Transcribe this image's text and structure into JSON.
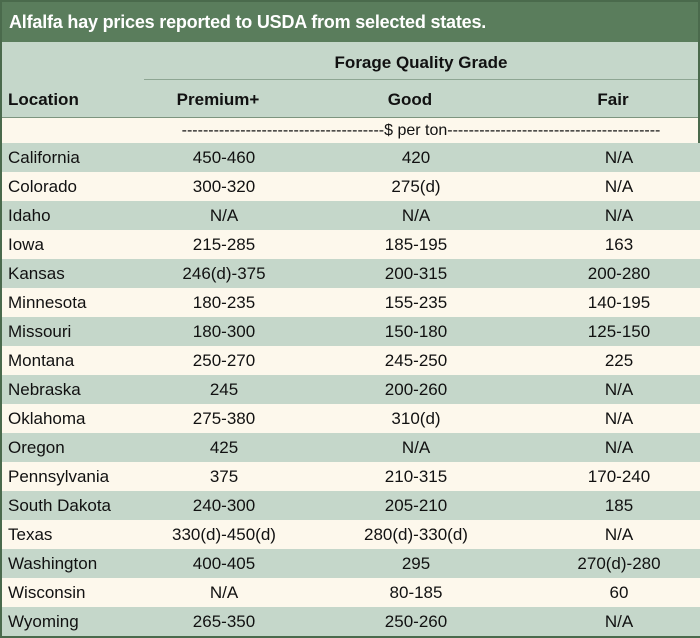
{
  "title": "Alfalfa hay prices reported to USDA from selected states.",
  "header": {
    "group_label": "Forage Quality Grade",
    "location_label": "Location",
    "columns": [
      "Premium+",
      "Good",
      "Fair"
    ],
    "unit_label": "--------------------------------------$ per ton----------------------------------------"
  },
  "rows": [
    {
      "location": "California",
      "premium": "450-460",
      "good": "420",
      "fair": "N/A"
    },
    {
      "location": "Colorado",
      "premium": "300-320",
      "good": "275(d)",
      "fair": "N/A"
    },
    {
      "location": "Idaho",
      "premium": "N/A",
      "good": "N/A",
      "fair": "N/A"
    },
    {
      "location": "Iowa",
      "premium": "215-285",
      "good": "185-195",
      "fair": "163"
    },
    {
      "location": "Kansas",
      "premium": "246(d)-375",
      "good": "200-315",
      "fair": "200-280"
    },
    {
      "location": "Minnesota",
      "premium": "180-235",
      "good": "155-235",
      "fair": "140-195"
    },
    {
      "location": "Missouri",
      "premium": "180-300",
      "good": "150-180",
      "fair": "125-150"
    },
    {
      "location": "Montana",
      "premium": "250-270",
      "good": "245-250",
      "fair": "225"
    },
    {
      "location": "Nebraska",
      "premium": "245",
      "good": "200-260",
      "fair": "N/A"
    },
    {
      "location": "Oklahoma",
      "premium": "275-380",
      "good": "310(d)",
      "fair": "N/A"
    },
    {
      "location": "Oregon",
      "premium": "425",
      "good": "N/A",
      "fair": "N/A"
    },
    {
      "location": "Pennsylvania",
      "premium": "375",
      "good": "210-315",
      "fair": "170-240"
    },
    {
      "location": "South Dakota",
      "premium": "240-300",
      "good": "205-210",
      "fair": "185"
    },
    {
      "location": "Texas",
      "premium": "330(d)-450(d)",
      "good": "280(d)-330(d)",
      "fair": "N/A"
    },
    {
      "location": "Washington",
      "premium": "400-405",
      "good": "295",
      "fair": "270(d)-280"
    },
    {
      "location": "Wisconsin",
      "premium": "N/A",
      "good": "80-185",
      "fair": "60"
    },
    {
      "location": "Wyoming",
      "premium": "265-350",
      "good": "250-260",
      "fair": "N/A"
    }
  ],
  "colors": {
    "title_bg": "#5a7d5c",
    "band": "#c5d7ca",
    "cream": "#fdf8ec"
  }
}
